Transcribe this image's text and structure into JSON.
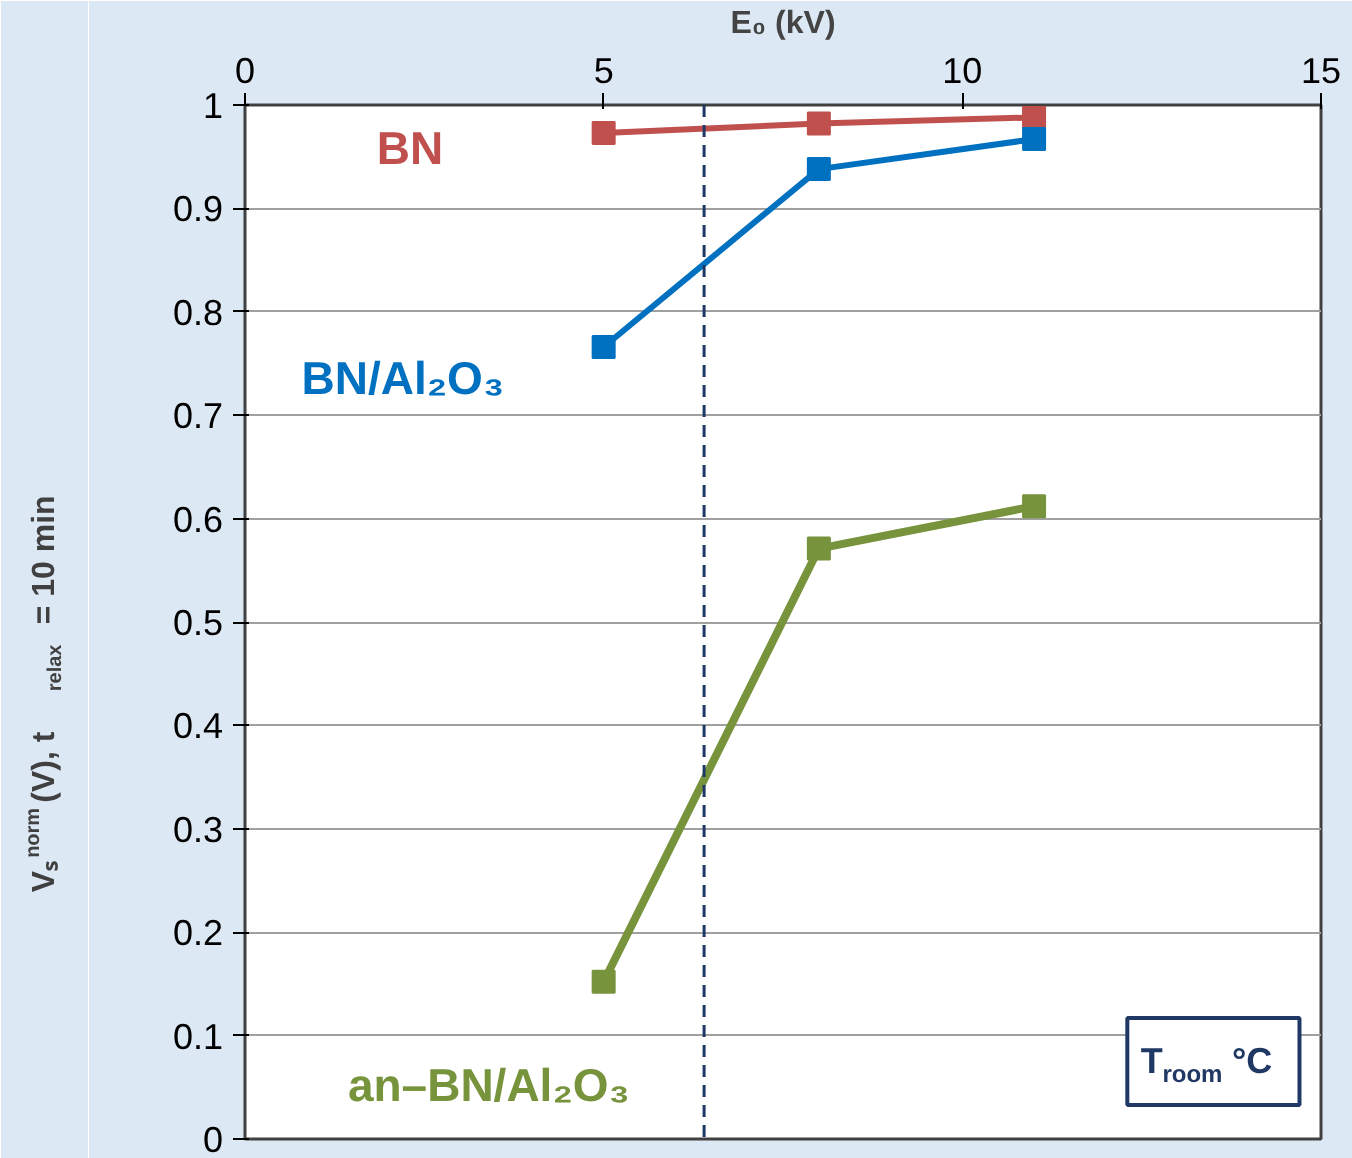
{
  "chart_data": {
    "type": "line",
    "xlabel": "E₀ (kV)",
    "ylabel": "Vₛ$^{norm}$ (V), t$_{relax}$ = 10 min",
    "xlim": [
      0,
      15
    ],
    "xticks": [
      0,
      5,
      10,
      15
    ],
    "ylim": [
      0,
      1
    ],
    "yticks": [
      0,
      0.1,
      0.2,
      0.3,
      0.4,
      0.5,
      0.6,
      0.7,
      0.8,
      0.9,
      1
    ],
    "grid": "y",
    "legend": false,
    "marker": "square",
    "line_style": "solid",
    "series": [
      {
        "name": "BN",
        "color": "#c0504d",
        "x": [
          5,
          8,
          11
        ],
        "values": [
          0.973,
          0.982,
          0.988
        ]
      },
      {
        "name": "BN/Al₂O₃",
        "color": "#0070c0",
        "x": [
          5,
          8,
          11
        ],
        "values": [
          0.766,
          0.938,
          0.967
        ]
      },
      {
        "name": "an–BN/Al₂O₃",
        "color": "#77933c",
        "x": [
          5,
          8,
          11
        ],
        "values": [
          0.152,
          0.571,
          0.612
        ]
      }
    ],
    "ref_lines": [
      {
        "axis": "x",
        "value": 6.4,
        "color": "#1f3864",
        "line_style": "dashed"
      }
    ],
    "annotations": [
      "T$_{room}$ °C"
    ]
  }
}
